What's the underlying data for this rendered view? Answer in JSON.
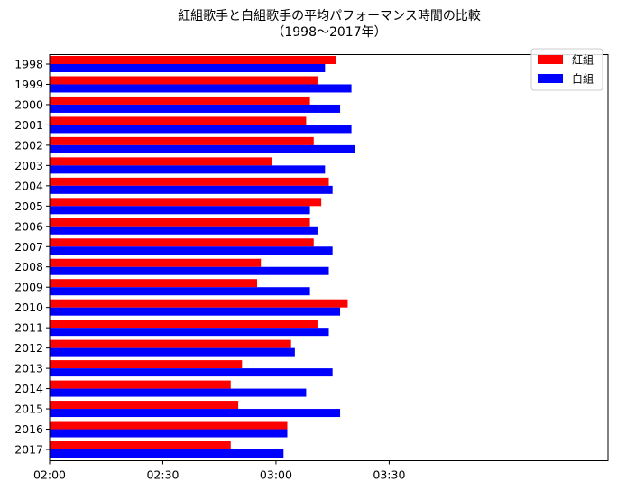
{
  "chart_data": {
    "type": "bar",
    "orientation": "horizontal",
    "title": "紅組歌手と白組歌手の平均パフォーマンス時間の比較",
    "subtitle": "（1998〜2017年）",
    "categories": [
      "1998",
      "1999",
      "2000",
      "2001",
      "2002",
      "2003",
      "2004",
      "2005",
      "2006",
      "2007",
      "2008",
      "2009",
      "2010",
      "2011",
      "2012",
      "2013",
      "2014",
      "2015",
      "2016",
      "2017"
    ],
    "x_unit": "mm:ss",
    "xlim": [
      "02:00",
      "04:28"
    ],
    "xticks": [
      "02:00",
      "02:30",
      "03:00",
      "03:30"
    ],
    "grid": false,
    "legend_position": "top-right",
    "series": [
      {
        "name": "紅組",
        "color": "#ff0000",
        "values": [
          "03:16",
          "03:11",
          "03:09",
          "03:08",
          "03:10",
          "02:59",
          "03:14",
          "03:12",
          "03:09",
          "03:10",
          "02:56",
          "02:55",
          "03:19",
          "03:11",
          "03:04",
          "02:51",
          "02:48",
          "02:50",
          "03:03",
          "02:48"
        ]
      },
      {
        "name": "白組",
        "color": "#0000ff",
        "values": [
          "03:13",
          "03:20",
          "03:17",
          "03:20",
          "03:21",
          "03:13",
          "03:15",
          "03:09",
          "03:11",
          "03:15",
          "03:14",
          "03:09",
          "03:17",
          "03:14",
          "03:05",
          "03:15",
          "03:08",
          "03:17",
          "03:03",
          "03:02"
        ]
      }
    ]
  }
}
